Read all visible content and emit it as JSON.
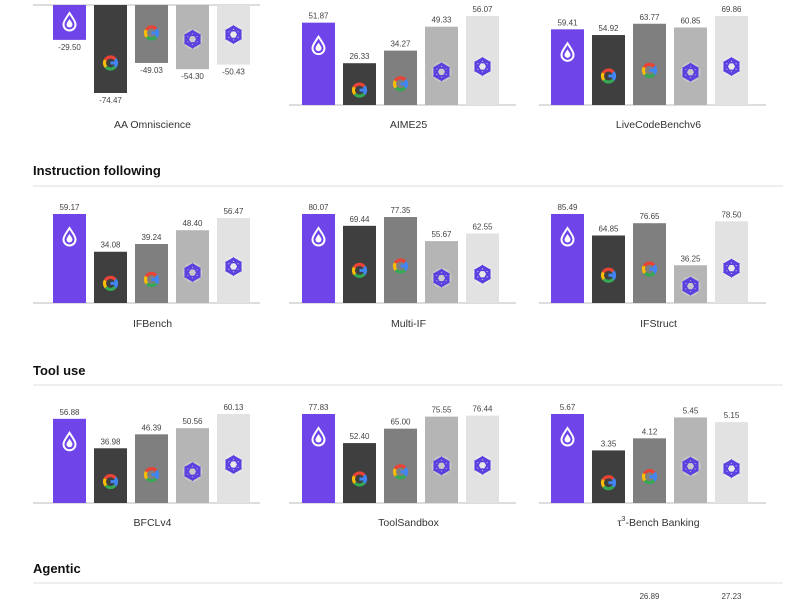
{
  "colors": {
    "model_1": "#6f44e8",
    "model_2": "#3f3f3f",
    "model_3": "#7f7f7f",
    "model_4": "#b5b5b5",
    "model_5": "#e2e2e2",
    "baseline": "#bbbbbb"
  },
  "icons": [
    "drop-logo-icon",
    "google-g-icon",
    "google-g-icon",
    "knot-logo-icon",
    "knot-logo-icon"
  ],
  "sections": [
    {
      "title": ""
    },
    {
      "title": "Instruction following"
    },
    {
      "title": "Tool use"
    },
    {
      "title": "Agentic"
    }
  ],
  "chart_data": [
    {
      "type": "bar",
      "section": 0,
      "xlabel": "AA Omniscience",
      "values": [
        -29.5,
        -74.47,
        -49.03,
        -54.3,
        -50.43
      ],
      "labels": [
        "-29.50",
        "-74.47",
        "-49.03",
        "-54.30",
        "-50.43"
      ]
    },
    {
      "type": "bar",
      "section": 0,
      "xlabel": "AIME25",
      "values": [
        51.87,
        26.33,
        34.27,
        49.33,
        56.07
      ],
      "labels": [
        "51.87",
        "26.33",
        "34.27",
        "49.33",
        "56.07"
      ]
    },
    {
      "type": "bar",
      "section": 0,
      "xlabel": "LiveCodeBenchv6",
      "values": [
        59.41,
        54.92,
        63.77,
        60.85,
        69.86
      ],
      "labels": [
        "59.41",
        "54.92",
        "63.77",
        "60.85",
        "69.86"
      ]
    },
    {
      "type": "bar",
      "section": 1,
      "xlabel": "IFBench",
      "values": [
        59.17,
        34.08,
        39.24,
        48.4,
        56.47
      ],
      "labels": [
        "59.17",
        "34.08",
        "39.24",
        "48.40",
        "56.47"
      ]
    },
    {
      "type": "bar",
      "section": 1,
      "xlabel": "Multi-IF",
      "values": [
        80.07,
        69.44,
        77.35,
        55.67,
        62.55
      ],
      "labels": [
        "80.07",
        "69.44",
        "77.35",
        "55.67",
        "62.55"
      ]
    },
    {
      "type": "bar",
      "section": 1,
      "xlabel": "IFStruct",
      "values": [
        85.49,
        64.85,
        76.65,
        36.25,
        78.5
      ],
      "labels": [
        "85.49",
        "64.85",
        "76.65",
        "36.25",
        "78.50"
      ]
    },
    {
      "type": "bar",
      "section": 2,
      "xlabel": "BFCLv4",
      "values": [
        56.88,
        36.98,
        46.39,
        50.56,
        60.13
      ],
      "labels": [
        "56.88",
        "36.98",
        "46.39",
        "50.56",
        "60.13"
      ]
    },
    {
      "type": "bar",
      "section": 2,
      "xlabel": "ToolSandbox",
      "values": [
        77.83,
        52.4,
        65.0,
        75.55,
        76.44
      ],
      "labels": [
        "77.83",
        "52.40",
        "65.00",
        "75.55",
        "76.44"
      ]
    },
    {
      "type": "bar",
      "section": 2,
      "xlabel": "τ3-Bench Banking",
      "xlabel_base": "τ",
      "xlabel_sup": "3",
      "xlabel_rest": "-Bench Banking",
      "values": [
        5.67,
        3.35,
        4.12,
        5.45,
        5.15
      ],
      "labels": [
        "5.67",
        "3.35",
        "4.12",
        "5.45",
        "5.15"
      ]
    },
    {
      "type": "bar",
      "section": 3,
      "xlabel": "",
      "values": [
        26.89
      ],
      "labels": [
        "26.89"
      ],
      "partial": true,
      "bar_index": 2
    },
    {
      "type": "bar",
      "section": 3,
      "xlabel": "",
      "values": [
        27.23
      ],
      "labels": [
        "27.23"
      ],
      "partial": true,
      "bar_index": 4
    }
  ]
}
